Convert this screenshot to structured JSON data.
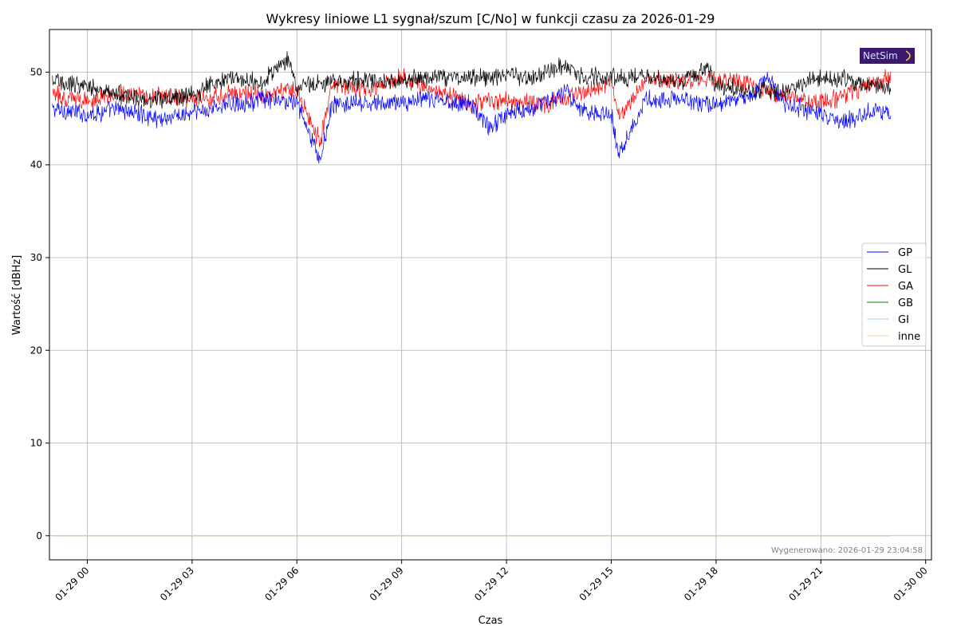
{
  "chart_data": {
    "type": "line",
    "title": "Wykresy liniowe L1 sygnał/szum [C/No] w funkcji czasu za 2026-01-29",
    "xlabel": "Czas",
    "ylabel": "Wartość [dBHz]",
    "x_range": [
      "2026-01-28 22:55",
      "2026-01-30 00:10"
    ],
    "ylim": [
      -2.6,
      54.6
    ],
    "x_ticks": [
      "01-29 00",
      "01-29 03",
      "01-29 06",
      "01-29 09",
      "01-29 12",
      "01-29 15",
      "01-29 18",
      "01-29 21",
      "01-30 00"
    ],
    "y_ticks": [
      0,
      10,
      20,
      30,
      40,
      50
    ],
    "grid": true,
    "legend_position": "center-right",
    "data_start": "2026-01-28 23:00",
    "data_end": "2026-01-29 23:00",
    "series": [
      {
        "name": "GP",
        "color": "#0000ff",
        "x": [
          "2026-01-28 23:00",
          "2026-01-29 00:00",
          "2026-01-29 01:00",
          "2026-01-29 02:00",
          "2026-01-29 03:00",
          "2026-01-29 04:00",
          "2026-01-29 05:00",
          "2026-01-29 06:00",
          "2026-01-29 06:40",
          "2026-01-29 07:00",
          "2026-01-29 08:00",
          "2026-01-29 09:00",
          "2026-01-29 10:00",
          "2026-01-29 11:00",
          "2026-01-29 11:30",
          "2026-01-29 12:00",
          "2026-01-29 13:00",
          "2026-01-29 13:45",
          "2026-01-29 14:00",
          "2026-01-29 15:00",
          "2026-01-29 15:12",
          "2026-01-29 16:00",
          "2026-01-29 17:00",
          "2026-01-29 18:00",
          "2026-01-29 19:00",
          "2026-01-29 19:30",
          "2026-01-29 20:00",
          "2026-01-29 21:00",
          "2026-01-29 21:30",
          "2026-01-29 22:00",
          "2026-01-29 22:30",
          "2026-01-29 23:00"
        ],
        "y": [
          46,
          45.5,
          46,
          45,
          45.5,
          46.5,
          47,
          46.8,
          40.4,
          46.5,
          46.5,
          46.8,
          47,
          46.5,
          44,
          45.5,
          46.5,
          48,
          46,
          45.5,
          41.3,
          47,
          47,
          46.5,
          47.5,
          49.5,
          46.5,
          45.5,
          44.5,
          45,
          46,
          45.5
        ]
      },
      {
        "name": "GL",
        "color": "#000000",
        "x": [
          "2026-01-28 23:00",
          "2026-01-29 00:00",
          "2026-01-29 01:00",
          "2026-01-29 02:00",
          "2026-01-29 03:00",
          "2026-01-29 04:00",
          "2026-01-29 05:00",
          "2026-01-29 05:45",
          "2026-01-29 06:00",
          "2026-01-29 07:00",
          "2026-01-29 08:00",
          "2026-01-29 09:00",
          "2026-01-29 10:00",
          "2026-01-29 11:00",
          "2026-01-29 12:00",
          "2026-01-29 13:00",
          "2026-01-29 13:40",
          "2026-01-29 14:00",
          "2026-01-29 15:00",
          "2026-01-29 16:00",
          "2026-01-29 17:00",
          "2026-01-29 17:45",
          "2026-01-29 18:00",
          "2026-01-29 19:00",
          "2026-01-29 20:00",
          "2026-01-29 21:00",
          "2026-01-29 22:00",
          "2026-01-29 23:00"
        ],
        "y": [
          49,
          48.5,
          47.5,
          47,
          47.5,
          49.5,
          49,
          51.5,
          48.5,
          49,
          49,
          49,
          49.5,
          49.5,
          49.5,
          49.5,
          51,
          49.5,
          49.5,
          49.5,
          49,
          50.5,
          48.5,
          48,
          48,
          49.5,
          49,
          48.5
        ]
      },
      {
        "name": "GA",
        "color": "#ff0000",
        "x": [
          "2026-01-28 23:00",
          "2026-01-29 00:00",
          "2026-01-29 01:00",
          "2026-01-29 02:00",
          "2026-01-29 03:00",
          "2026-01-29 04:00",
          "2026-01-29 05:00",
          "2026-01-29 06:00",
          "2026-01-29 06:40",
          "2026-01-29 07:00",
          "2026-01-29 08:00",
          "2026-01-29 09:00",
          "2026-01-29 10:00",
          "2026-01-29 11:00",
          "2026-01-29 12:00",
          "2026-01-29 13:00",
          "2026-01-29 14:00",
          "2026-01-29 15:00",
          "2026-01-29 15:15",
          "2026-01-29 16:00",
          "2026-01-29 17:00",
          "2026-01-29 18:00",
          "2026-01-29 19:00",
          "2026-01-29 20:00",
          "2026-01-29 21:00",
          "2026-01-29 22:00",
          "2026-01-29 23:00"
        ],
        "y": [
          47.5,
          47,
          47.8,
          47.5,
          47,
          47.5,
          47.5,
          48,
          42.5,
          48.5,
          48,
          49.5,
          48,
          46.5,
          47,
          46.5,
          47.5,
          49,
          45,
          49.5,
          49,
          49.5,
          48.5,
          47.5,
          46.5,
          48,
          49.5
        ]
      },
      {
        "name": "GB",
        "color": "#008000",
        "x": [
          "2026-01-28 23:00",
          "2026-01-29 23:00"
        ],
        "y": [
          0,
          0
        ]
      },
      {
        "name": "GI",
        "color": "#a9c8f0",
        "x": [
          "2026-01-28 23:00",
          "2026-01-29 23:00"
        ],
        "y": [
          0,
          0
        ]
      },
      {
        "name": "inne",
        "color": "#ffcc99",
        "x": [
          "2026-01-28 23:00",
          "2026-01-29 23:00"
        ],
        "y": [
          0,
          0
        ]
      }
    ]
  },
  "footer": "Wygenerowano: 2026-01-29 23:04:58",
  "logo": {
    "text": "NetSim",
    "background": "#3b1a6e",
    "text_color": "#cfe3ff"
  }
}
